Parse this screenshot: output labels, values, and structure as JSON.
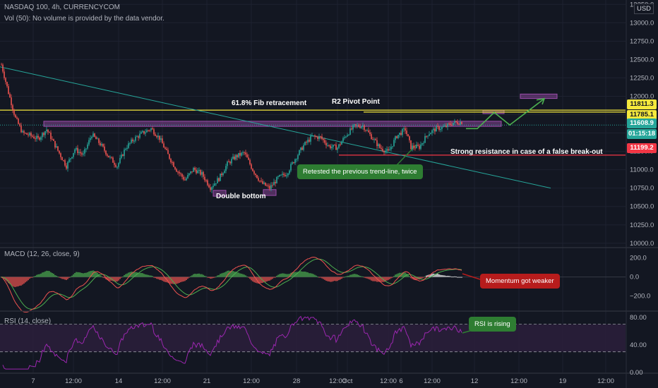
{
  "header": {
    "symbol": "NASDAQ 100, 4h, CURRENCYCOM",
    "volume_note": "Vol (50): No volume is provided by the data vendor."
  },
  "currency_badge": "USD",
  "colors": {
    "background": "#131722",
    "grid": "#1e2230",
    "up": "#26a69a",
    "down": "#ef5350",
    "yellow_line": "#f5e93c",
    "red_line": "#f23645",
    "trend_line": "#26a69a",
    "zone": "#9c4dab",
    "arrow": "#4caf50",
    "macd_line": "#ef5350",
    "signal_line": "#4caf50",
    "rsi_line": "#9c27b0",
    "rsi_band": "#2a1e3a"
  },
  "chart_data": {
    "type": "candlestick",
    "title": "NASDAQ 100, 4h, CURRENCYCOM",
    "y_ticks": [
      10000,
      10250,
      10500,
      10750,
      11000,
      11250,
      11500,
      11750,
      12000,
      12250,
      12500,
      12750,
      13000,
      13250
    ],
    "y_tick_labels": [
      "10000.0",
      "10250.0",
      "10500.0",
      "10750.0",
      "11000.0",
      "11250.0",
      "11500.0",
      "11750.0",
      "12000.0",
      "12250.0",
      "12500.0",
      "12750.0",
      "13000.0",
      "13250.0"
    ],
    "ylim": [
      9950,
      13310
    ],
    "x_ticks": [
      "7",
      "12:00",
      "14",
      "12:00",
      "21",
      "12:00",
      "28",
      "12:00",
      "Oct",
      "12:00",
      "6",
      "12:00",
      "12",
      "12:00",
      "19",
      "12:00"
    ],
    "price_path": [
      [
        0,
        12430
      ],
      [
        5,
        12050
      ],
      [
        10,
        11700
      ],
      [
        15,
        11500
      ],
      [
        20,
        11470
      ],
      [
        26,
        11420
      ],
      [
        32,
        11550
      ],
      [
        40,
        11260
      ],
      [
        46,
        11050
      ],
      [
        52,
        11280
      ],
      [
        58,
        11200
      ],
      [
        64,
        11480
      ],
      [
        70,
        11350
      ],
      [
        76,
        11180
      ],
      [
        82,
        11050
      ],
      [
        88,
        11300
      ],
      [
        94,
        11420
      ],
      [
        100,
        11500
      ],
      [
        106,
        11560
      ],
      [
        112,
        11430
      ],
      [
        118,
        11200
      ],
      [
        124,
        11000
      ],
      [
        130,
        10860
      ],
      [
        136,
        11010
      ],
      [
        142,
        10940
      ],
      [
        148,
        10760
      ],
      [
        154,
        10880
      ],
      [
        160,
        11080
      ],
      [
        166,
        11180
      ],
      [
        172,
        11230
      ],
      [
        178,
        11000
      ],
      [
        184,
        10820
      ],
      [
        190,
        10750
      ],
      [
        196,
        10890
      ],
      [
        202,
        10950
      ],
      [
        208,
        11150
      ],
      [
        214,
        11330
      ],
      [
        220,
        11450
      ],
      [
        226,
        11440
      ],
      [
        232,
        11320
      ],
      [
        238,
        11300
      ],
      [
        244,
        11470
      ],
      [
        250,
        11590
      ],
      [
        256,
        11600
      ],
      [
        262,
        11450
      ],
      [
        268,
        11300
      ],
      [
        274,
        11240
      ],
      [
        280,
        11460
      ],
      [
        286,
        11550
      ],
      [
        290,
        11310
      ],
      [
        296,
        11310
      ],
      [
        302,
        11490
      ],
      [
        308,
        11560
      ],
      [
        314,
        11580
      ],
      [
        320,
        11640
      ],
      [
        326,
        11650
      ]
    ],
    "levels": [
      {
        "name": "61.8% Fib retracement",
        "value": 11811.3,
        "label": "11811.3"
      },
      {
        "name": "R2 Pivot Point",
        "value": 11785.1,
        "label": "11785.1"
      },
      {
        "name": "current",
        "value": 11608.9,
        "label": "11608.9"
      },
      {
        "name": "Strong resistance in case of a false break-out",
        "value": 11199.2,
        "label": "11199.2"
      }
    ],
    "countdown_label": "01:15:18",
    "annotations": {
      "fib": "61.8% Fib retracement",
      "pivot": "R2 Pivot Point",
      "resistance": "Strong resistance in case of a false break-out",
      "double_bottom": "Double bottom",
      "retest": "Retested the previous trend-line, twice"
    },
    "macd": {
      "label": "MACD (12, 26, close, 9)",
      "y_ticks": [
        200,
        0,
        -200
      ],
      "y_tick_labels": [
        "200.0",
        "0.0",
        "−200.0"
      ],
      "ylim": [
        -350,
        300
      ],
      "callout": "Momentum got weaker"
    },
    "rsi": {
      "label": "RSI (14, close)",
      "y_ticks": [
        80,
        40,
        0
      ],
      "y_tick_labels": [
        "80.00",
        "40.00",
        "0.00"
      ],
      "ylim": [
        0,
        88
      ],
      "band": [
        30,
        70
      ],
      "callout": "RSI is rising"
    }
  }
}
